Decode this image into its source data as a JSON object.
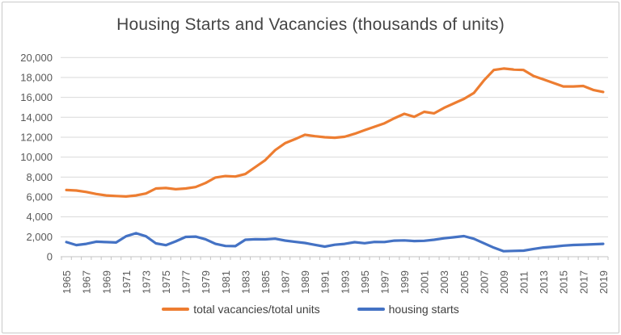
{
  "chart": {
    "title": "Housing Starts and Vacancies (thousands of units)"
  },
  "chart_data": {
    "type": "line",
    "title": "Housing Starts and Vacancies (thousands of units)",
    "xlabel": "",
    "ylabel": "",
    "ylim": [
      0,
      20000
    ],
    "y_ticks": [
      0,
      2000,
      4000,
      6000,
      8000,
      10000,
      12000,
      14000,
      16000,
      18000,
      20000
    ],
    "grid": "horizontal",
    "legend_position": "bottom",
    "x": [
      1965,
      1966,
      1967,
      1968,
      1969,
      1970,
      1971,
      1972,
      1973,
      1974,
      1975,
      1976,
      1977,
      1978,
      1979,
      1980,
      1981,
      1982,
      1983,
      1984,
      1985,
      1986,
      1987,
      1988,
      1989,
      1990,
      1991,
      1992,
      1993,
      1994,
      1995,
      1996,
      1997,
      1998,
      1999,
      2000,
      2001,
      2002,
      2003,
      2004,
      2005,
      2006,
      2007,
      2008,
      2009,
      2010,
      2011,
      2012,
      2013,
      2014,
      2015,
      2016,
      2017,
      2018,
      2019
    ],
    "x_tick_labels": [
      1965,
      1967,
      1969,
      1971,
      1973,
      1975,
      1977,
      1979,
      1981,
      1983,
      1985,
      1987,
      1989,
      1991,
      1993,
      1995,
      1997,
      1999,
      2001,
      2003,
      2005,
      2007,
      2009,
      2011,
      2013,
      2015,
      2017,
      2019
    ],
    "series": [
      {
        "name": "total vacancies/total units",
        "color": "#ED7D31",
        "values": [
          6700,
          6650,
          6500,
          6300,
          6150,
          6100,
          6050,
          6150,
          6350,
          6850,
          6900,
          6780,
          6850,
          7000,
          7400,
          7950,
          8100,
          8050,
          8300,
          9000,
          9700,
          10700,
          11400,
          11800,
          12250,
          12100,
          12000,
          11950,
          12050,
          12350,
          12700,
          13050,
          13400,
          13900,
          14350,
          14050,
          14550,
          14400,
          14950,
          15400,
          15850,
          16450,
          17700,
          18750,
          18900,
          18800,
          18750,
          18150,
          17800,
          17450,
          17100,
          17100,
          17150,
          16750,
          16550
        ]
      },
      {
        "name": "housing starts",
        "color": "#4472C4",
        "values": [
          1470,
          1170,
          1290,
          1510,
          1470,
          1430,
          2050,
          2360,
          2050,
          1340,
          1160,
          1540,
          1990,
          2020,
          1750,
          1290,
          1080,
          1060,
          1700,
          1750,
          1740,
          1810,
          1620,
          1490,
          1380,
          1190,
          1010,
          1200,
          1290,
          1460,
          1350,
          1480,
          1475,
          1615,
          1640,
          1570,
          1600,
          1700,
          1850,
          1955,
          2070,
          1800,
          1355,
          905,
          555,
          585,
          610,
          780,
          925,
          1005,
          1110,
          1175,
          1205,
          1250,
          1290
        ]
      }
    ]
  }
}
